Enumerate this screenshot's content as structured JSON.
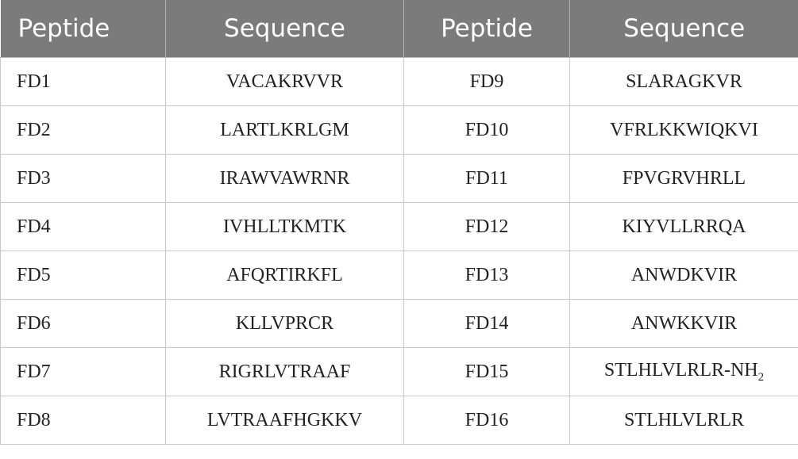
{
  "headers": [
    "Peptide",
    "Sequence",
    "Peptide",
    "Sequence"
  ],
  "rows": [
    {
      "left_peptide": "FD1",
      "left_sequence": "VACAKRVVR",
      "right_peptide": "FD9",
      "right_sequence": "SLARAGKVR"
    },
    {
      "left_peptide": "FD2",
      "left_sequence": "LARTLKRLGM",
      "right_peptide": "FD10",
      "right_sequence": "VFRLKKWIQKVI"
    },
    {
      "left_peptide": "FD3",
      "left_sequence": "IRAWVAWRNR",
      "right_peptide": "FD11",
      "right_sequence": "FPVGRVHRLL"
    },
    {
      "left_peptide": "FD4",
      "left_sequence": "IVHLLTKMTK",
      "right_peptide": "FD12",
      "right_sequence": "KIYVLLRRQA"
    },
    {
      "left_peptide": "FD5",
      "left_sequence": "AFQRTIRKFL",
      "right_peptide": "FD13",
      "right_sequence": "ANWDKVIR"
    },
    {
      "left_peptide": "FD6",
      "left_sequence": "KLLVPRCR",
      "right_peptide": "FD14",
      "right_sequence": "ANWKKVIR"
    },
    {
      "left_peptide": "FD7",
      "left_sequence": "RIGRLVTRAAF",
      "right_peptide": "FD15",
      "right_sequence": "STLHLVLRLR-NH",
      "right_sequence_subscript": "2"
    },
    {
      "left_peptide": "FD8",
      "left_sequence": "LVTRAAFHGKKV",
      "right_peptide": "FD16",
      "right_sequence": "STLHLVLRLR"
    }
  ]
}
